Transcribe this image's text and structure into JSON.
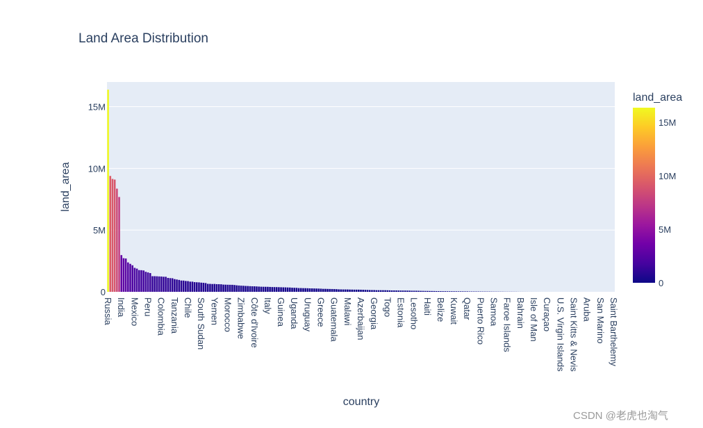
{
  "chart_data": {
    "type": "bar",
    "title": "Land Area Distribution",
    "xlabel": "country",
    "ylabel": "land_area",
    "ylim": [
      0,
      17000000
    ],
    "yticks": [
      {
        "value": 0,
        "label": "0"
      },
      {
        "value": 5000000,
        "label": "5M"
      },
      {
        "value": 10000000,
        "label": "10M"
      },
      {
        "value": 15000000,
        "label": "15M"
      }
    ],
    "x_tick_labels": [
      "Russia",
      "India",
      "Mexico",
      "Peru",
      "Colombia",
      "Tanzania",
      "Chile",
      "South Sudan",
      "Yemen",
      "Morocco",
      "Zimbabwe",
      "Côte d'Ivoire",
      "Italy",
      "Guinea",
      "Uganda",
      "Uruguay",
      "Greece",
      "Guatemala",
      "Malawi",
      "Azerbaijan",
      "Georgia",
      "Togo",
      "Estonia",
      "Lesotho",
      "Haiti",
      "Belize",
      "Kuwait",
      "Qatar",
      "Puerto Rico",
      "Samoa",
      "Faroe Islands",
      "Bahrain",
      "Isle of Man",
      "Curaçao",
      "U.S. Virgin Islands",
      "Saint Kitts & Nevis",
      "Aruba",
      "San Marino",
      "Saint Barthelemy"
    ],
    "values": [
      16376870,
      9388211,
      9147420,
      9093510,
      8358140,
      7682300,
      2973190,
      2724902,
      2699700,
      2381740,
      2267050,
      2149690,
      1943950,
      1879758,
      1759540,
      1752030,
      1731410,
      1622540,
      1570000,
      1517730,
      1266700,
      1266700,
      1259200,
      1246700,
      1239250,
      1221040,
      1219090,
      1127430,
      1109500,
      1098580,
      1030700,
      998590,
      964470,
      915000,
      910770,
      879250,
      867050,
      825620,
      823290,
      785350,
      774410,
      765360,
      742640,
      730500,
      710870,
      647730,
      643390,
      632020,
      638210,
      620000,
      617880,
      610952,
      584720,
      579320,
      573630,
      569140,
      567580,
      551400,
      527970,
      511770,
      498980,
      489630,
      476800,
      470000,
      458360,
      449920,
      446300,
      436670,
      425400,
      414240,
      410340,
      407280,
      405150,
      396060,
      386850,
      384180,
      381350,
      376250,
      370280,
      364500,
      361000,
      353300,
      348560,
      333420,
      327100,
      323800,
      304200,
      304560,
      297310,
      294540,
      290100,
      281000,
      277770,
      272000,
      267670,
      262800,
      255960,
      241550,
      241120,
      235000,
      230800,
      227570,
      222500,
      214970,
      200520,
      196850,
      192530,
      191800,
      190100,
      183360,
      180770,
      176520,
      176400,
      174900,
      170800,
      165000,
      158000,
      151570,
      143350,
      140800,
      139890,
      130370,
      129850,
      129300,
      128900,
      127000,
      122600,
      118480,
      111810,
      110380,
      108560,
      104930,
      103000,
      100900,
      99720,
      96320,
      94280,
      88360,
      87460,
      86000,
      82200,
      77240,
      74290,
      70300,
      68870,
      65090,
      64500,
      62000,
      57250,
      53000,
      51120,
      48280,
      48088,
      44360,
      42300,
      42500,
      41810,
      40000,
      38180,
      38470,
      36010,
      35180,
      33810,
      28200,
      27990,
      27400,
      26710,
      25360,
      24670,
      23180,
      22800,
      20900,
      20770,
      18270,
      17000,
      15800,
      14870,
      13880,
      13790,
      11300,
      10450,
      10000,
      10230,
      9250,
      8870,
      6020,
      4320,
      3920,
      3260,
      2820,
      2030,
      2000,
      1580,
      1460,
      1280,
      760,
      700,
      690,
      640,
      570,
      542,
      460,
      450,
      444,
      430,
      350,
      347,
      316,
      310,
      300,
      270,
      260,
      240,
      180,
      160,
      150,
      140,
      110,
      100,
      70,
      60,
      50,
      30,
      30,
      20,
      20,
      2,
      1,
      0.44
    ]
  },
  "colorbar": {
    "title": "land_area",
    "ticks": [
      {
        "value": 0,
        "label": "0"
      },
      {
        "value": 5000000,
        "label": "5M"
      },
      {
        "value": 10000000,
        "label": "10M"
      },
      {
        "value": 15000000,
        "label": "15M"
      }
    ],
    "range": [
      0,
      16376870
    ],
    "colors": [
      "#0d0887",
      "#46039f",
      "#7201a8",
      "#9c179e",
      "#bd3786",
      "#d8576b",
      "#ed7953",
      "#fb9f3a",
      "#fdca26",
      "#f0f921"
    ]
  },
  "watermark": "CSDN @老虎也淘气"
}
